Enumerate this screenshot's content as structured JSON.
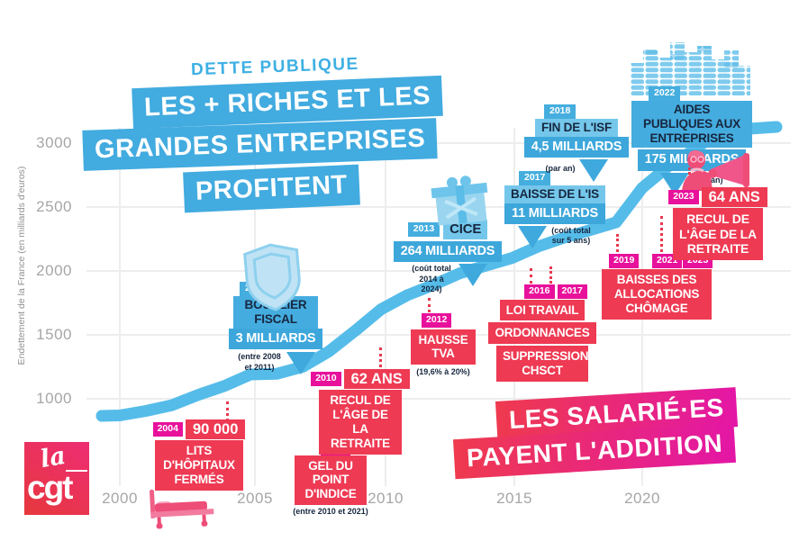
{
  "title": {
    "kicker": "DETTE PUBLIQUE",
    "line1": "LES + RICHES ET LES",
    "line2": "GRANDES ENTREPRISES",
    "line3": "PROFITENT"
  },
  "axes": {
    "y_label": "Endettement de la France (en milliards d'euros)",
    "y_ticks": [
      "3000",
      "2500",
      "2000",
      "1500",
      "1000"
    ],
    "x_ticks": [
      "2000",
      "2005",
      "2010",
      "2015",
      "2020"
    ]
  },
  "chart_data": {
    "type": "line",
    "title": "Dette publique",
    "ylabel": "Endettement de la France (en milliards d'euros)",
    "xlabel": "",
    "x_tick_labels": [
      2000,
      2005,
      2010,
      2015,
      2020
    ],
    "ylim": [
      750,
      3250
    ],
    "grid": true,
    "legend_position": "none",
    "series": [
      {
        "name": "Endettement de la France (milliards d'euros, estimé depuis la courbe)",
        "x": [
          2000,
          2001,
          2002,
          2003,
          2004,
          2005,
          2006,
          2007,
          2008,
          2009,
          2010,
          2011,
          2012,
          2013,
          2014,
          2015,
          2016,
          2017,
          2018,
          2019,
          2020,
          2021,
          2022,
          2023
        ],
        "values": [
          870,
          905,
          950,
          1030,
          1100,
          1190,
          1195,
          1250,
          1370,
          1530,
          1700,
          1810,
          1890,
          1980,
          2040,
          2100,
          2190,
          2260,
          2320,
          2380,
          2650,
          2820,
          2950,
          3100
        ],
        "color": "#55bce9"
      }
    ]
  },
  "blue": [
    {
      "year": "2006",
      "title": "BOUCLIER FISCAL",
      "amount": "3 MILLIARDS",
      "note": "(entre 2008 et 2011)",
      "icon": "shield"
    },
    {
      "year": "2013",
      "title": "CICE",
      "amount": "264 MILLIARDS",
      "note": "(coût total 2014 à 2024)",
      "icon": "gift"
    },
    {
      "year": "2017",
      "title": "BAISSE DE L'IS",
      "amount": "11 MILLIARDS",
      "note": "(coût total sur 5 ans)"
    },
    {
      "year": "2018",
      "title": "FIN DE L'ISF",
      "amount": "4,5 MILLIARDS",
      "note": "(par an)"
    },
    {
      "year": "2022",
      "title": "AIDES PUBLIQUES AUX ENTREPRISES",
      "amount": "175 MILLIARDS",
      "note": "(par an)",
      "icon": "coins"
    }
  ],
  "red": [
    {
      "year": "2004",
      "headline": "90 000",
      "body": "LITS D'HÔPITAUX FERMÉS",
      "icon": "hospital-bed"
    },
    {
      "year": "2010",
      "body": "GEL DU POINT D'INDICE",
      "note": "(entre 2010 et 2021)"
    },
    {
      "year": "2010",
      "headline": "62 ANS",
      "body": "RECUL DE L'ÂGE DE LA RETRAITE"
    },
    {
      "year": "2012",
      "body": "HAUSSE TVA",
      "note": "(19,6% à 20%)"
    },
    {
      "years": [
        "2016",
        "2017"
      ],
      "lines": [
        "LOI TRAVAIL",
        "ORDONNANCES",
        "SUPPRESSION CHSCT"
      ]
    },
    {
      "years": [
        "2019",
        "2021",
        "2023"
      ],
      "body": "BAISSES DES ALLOCATIONS CHÔMAGE"
    },
    {
      "year": "2023",
      "headline": "64 ANS",
      "body": "RECUL DE L'ÂGE DE LA RETRAITE",
      "icon": "megaphone-person"
    }
  ],
  "footer": {
    "line1": "LES SALARIÉ·ES",
    "line2": "PAYENT L'ADDITION"
  },
  "logo": {
    "la": "la",
    "cgt": "cgt"
  },
  "colors": {
    "banner_blue": "#42abdf",
    "strip_light_blue": "#74c7eb",
    "curve_blue": "#55bce9",
    "block_red": "#ee3a53",
    "badge_magenta": "#e8119b",
    "gradient_start": "#ef3a4e",
    "gradient_end": "#e316a6",
    "grid": "#ededed",
    "axis_text": "#a6a6a6"
  }
}
